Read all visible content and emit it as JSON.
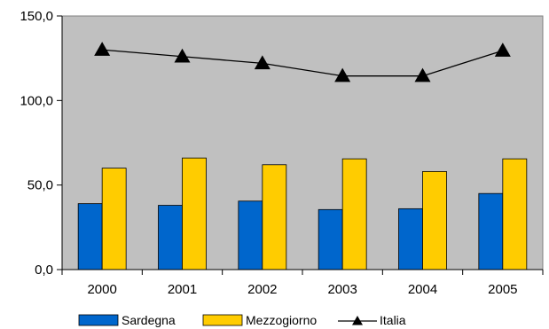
{
  "chart_data": {
    "type": "bar",
    "categories": [
      "2000",
      "2001",
      "2002",
      "2003",
      "2004",
      "2005"
    ],
    "series": [
      {
        "name": "Sardegna",
        "type": "bar",
        "color": "#0066CC",
        "values": [
          39.0,
          38.0,
          40.5,
          35.5,
          36.0,
          45.0
        ]
      },
      {
        "name": "Mezzogiorno",
        "type": "bar",
        "color": "#FFCC00",
        "values": [
          60.0,
          66.0,
          62.0,
          65.5,
          58.0,
          65.5
        ]
      },
      {
        "name": "Italia",
        "type": "line",
        "color": "#000000",
        "marker": "triangle",
        "values": [
          130.0,
          126.0,
          122.0,
          114.5,
          114.5,
          129.5
        ]
      }
    ],
    "y_ticks": [
      "0,0",
      "50,0",
      "100,0",
      "150,0"
    ],
    "ylim": [
      0,
      150
    ],
    "plot_background": "#C0C0C0",
    "grid": false,
    "legend_position": "bottom",
    "title": "",
    "xlabel": "",
    "ylabel": ""
  }
}
